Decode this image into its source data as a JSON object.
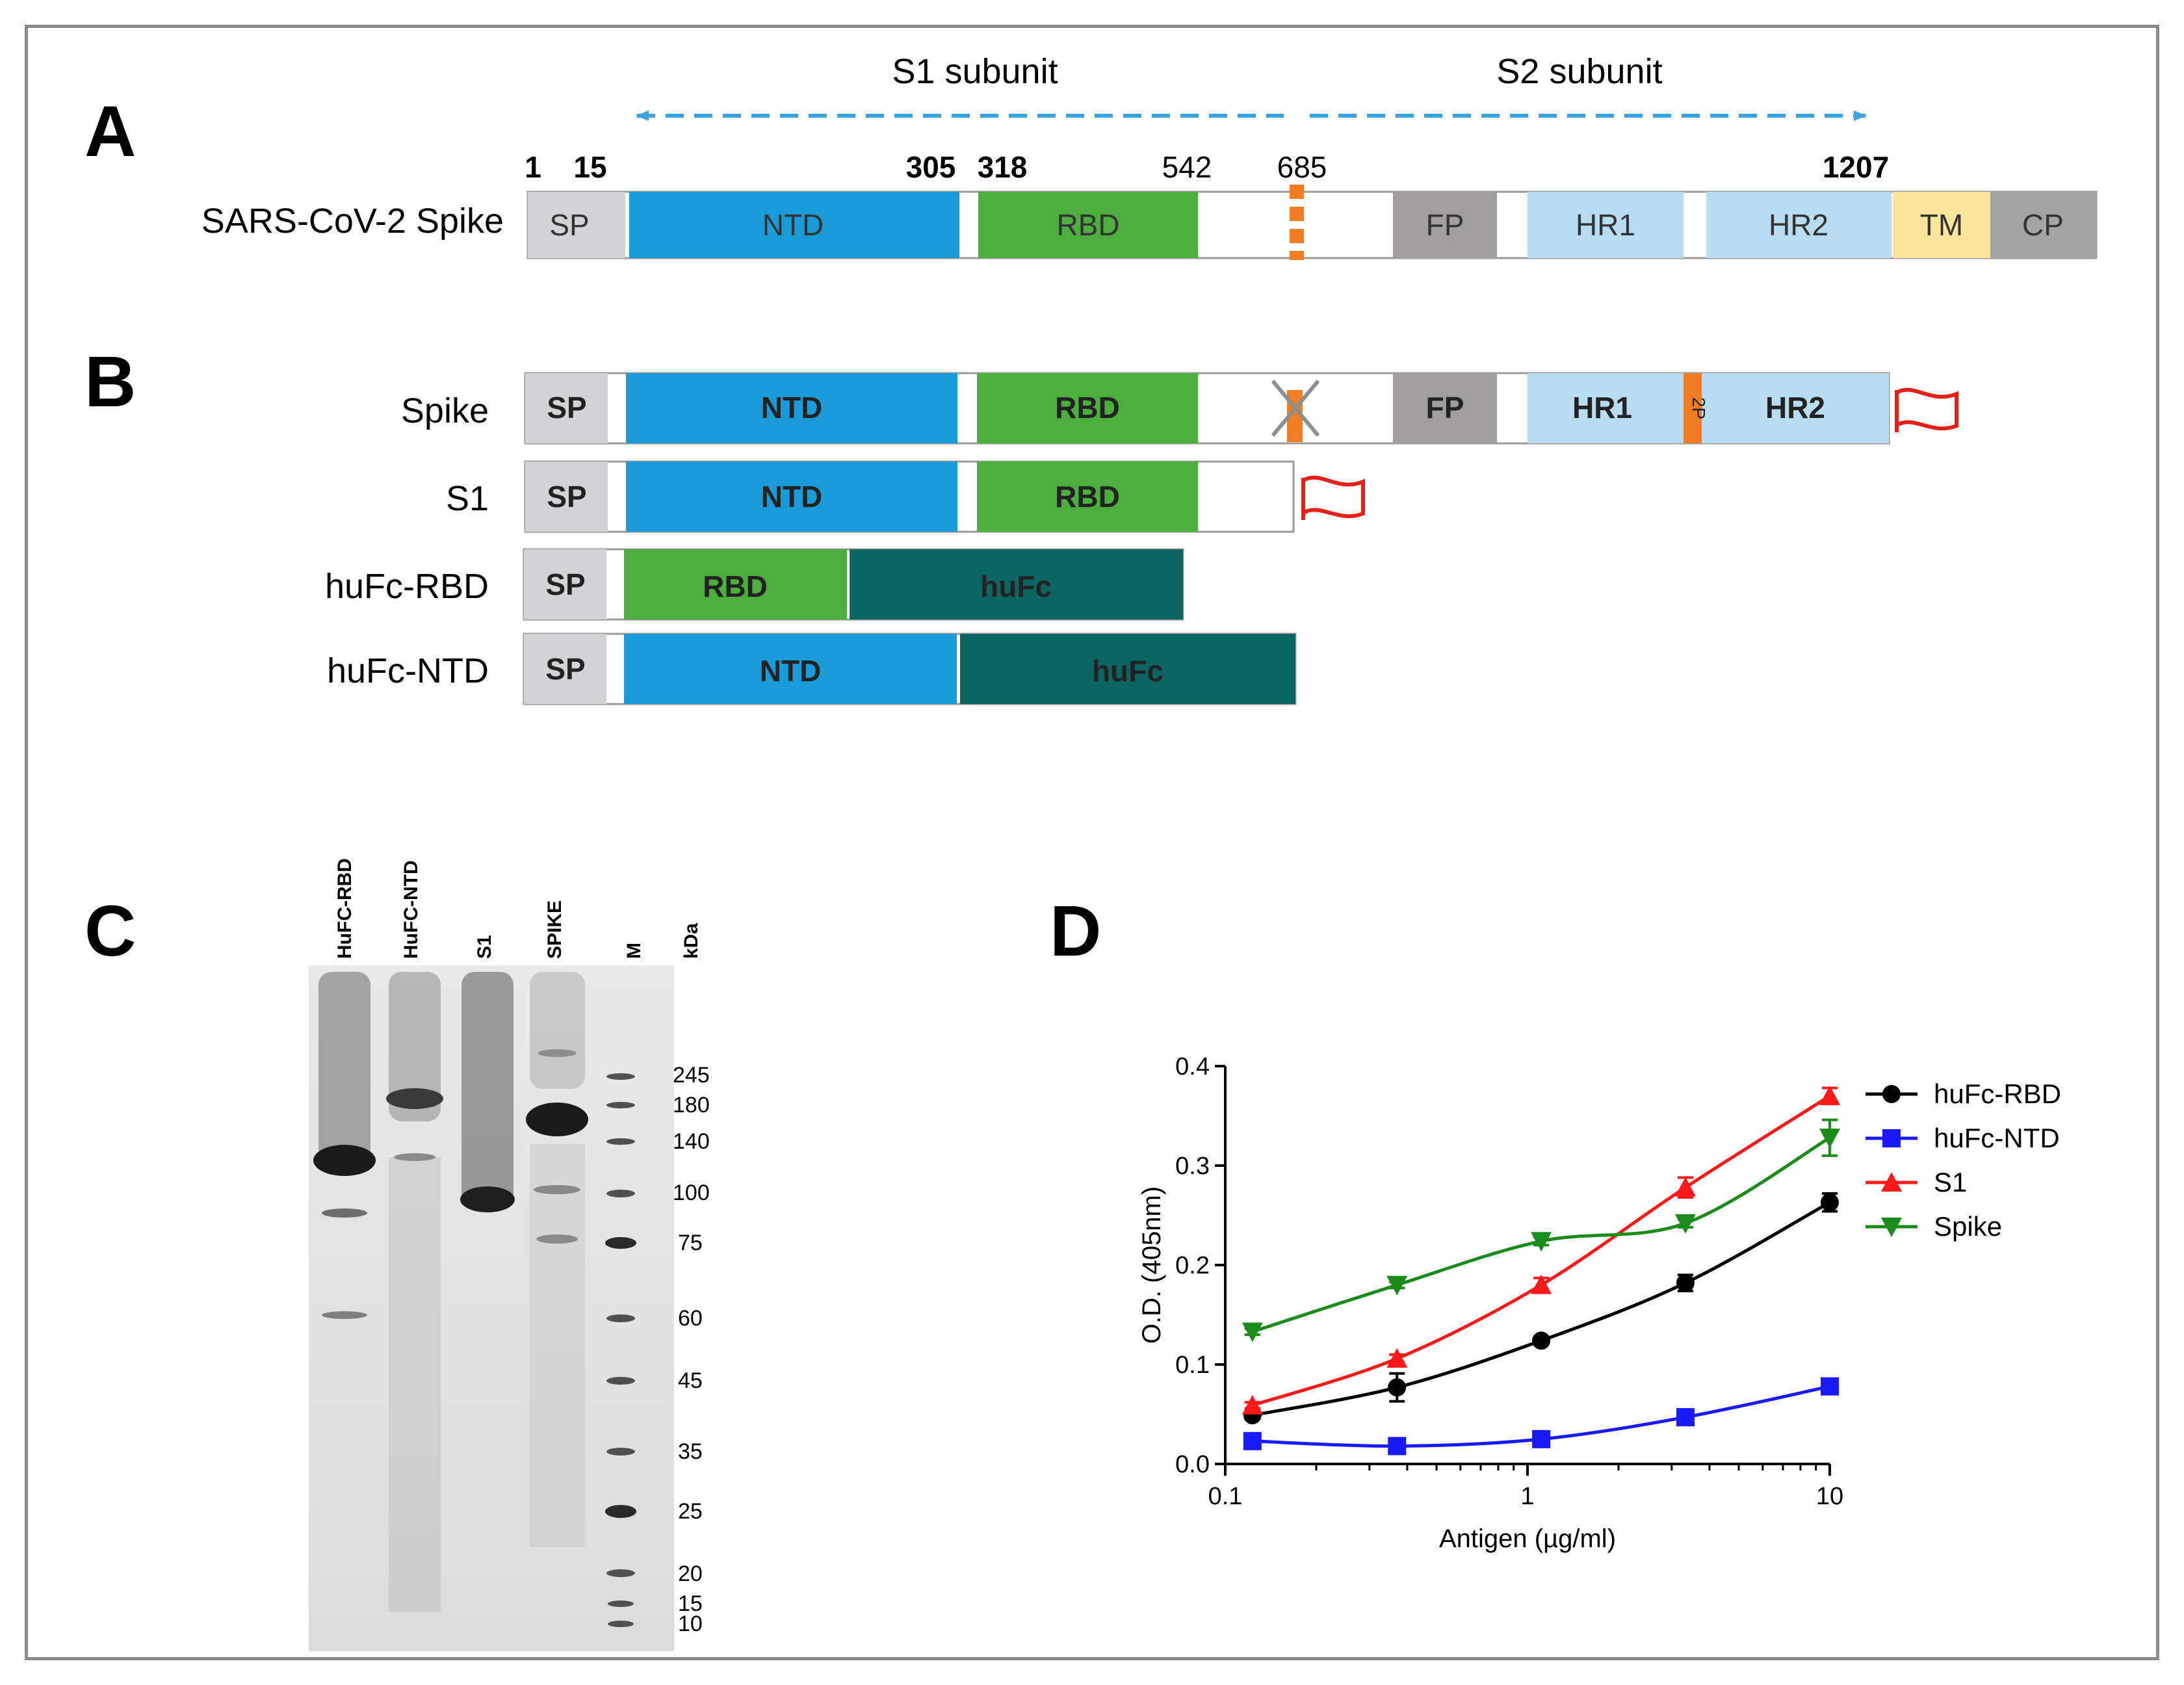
{
  "panels": {
    "a": "A",
    "b": "B",
    "c": "C",
    "d": "D"
  },
  "colors": {
    "sp": "#d3d3d5",
    "ntd": "#1a9ad7",
    "rbd": "#4cae3c",
    "fp": "#a09e9e",
    "hr": "#b8dcf2",
    "tm": "#fbe59a",
    "cp": "#a4a4a4",
    "hufc": "#0b6560",
    "cleavage": "#f07c23",
    "arrow": "#3aa3e0",
    "tag": "#e32119"
  },
  "panel_a": {
    "s1_subunit": "S1 subunit",
    "s2_subunit": "S2 subunit",
    "positions": [
      "1",
      "15",
      "305",
      "318",
      "542",
      "685",
      "1207"
    ],
    "row_label": "SARS-CoV-2 Spike",
    "segments": [
      "SP",
      "NTD",
      "RBD",
      "FP",
      "HR1",
      "HR2",
      "TM",
      "CP"
    ]
  },
  "panel_b": {
    "constructs": [
      {
        "label": "Spike",
        "segments": [
          "SP",
          "NTD",
          "RBD",
          "FP",
          "HR1",
          "2P",
          "HR2"
        ]
      },
      {
        "label": "S1",
        "segments": [
          "SP",
          "NTD",
          "RBD"
        ]
      },
      {
        "label": "huFc-RBD",
        "segments": [
          "SP",
          "RBD",
          "huFc"
        ]
      },
      {
        "label": "huFc-NTD",
        "segments": [
          "SP",
          "NTD",
          "huFc"
        ]
      }
    ]
  },
  "panel_c": {
    "lanes": [
      "HuFC-RBD",
      "HuFC-NTD",
      "S1",
      "SPIKE",
      "M"
    ],
    "unit": "kDa",
    "markers": [
      "245",
      "180",
      "140",
      "100",
      "75",
      "60",
      "45",
      "35",
      "25",
      "20",
      "15",
      "10"
    ]
  },
  "chart_data": {
    "type": "line",
    "xscale": "log",
    "xlabel": "Antigen (µg/ml)",
    "ylabel": "O.D. (405nm)",
    "xlim": [
      0.1,
      10
    ],
    "ylim": [
      0.0,
      0.4
    ],
    "xticks": [
      "0.1",
      "1",
      "10"
    ],
    "yticks": [
      "0.0",
      "0.1",
      "0.2",
      "0.3",
      "0.4"
    ],
    "x": [
      0.123,
      0.37,
      1.11,
      3.33,
      10
    ],
    "legend_position": "right",
    "series": [
      {
        "name": "huFc-RBD",
        "color": "#000000",
        "marker": "circle",
        "values": [
          0.049,
          0.077,
          0.124,
          0.182,
          0.263
        ],
        "errors": [
          0.004,
          0.014,
          0.004,
          0.008,
          0.009
        ]
      },
      {
        "name": "huFc-NTD",
        "color": "#1a1aff",
        "marker": "square",
        "values": [
          0.023,
          0.018,
          0.025,
          0.047,
          0.078
        ],
        "errors": [
          0.002,
          0.002,
          0.002,
          0.003,
          0.003
        ]
      },
      {
        "name": "S1",
        "color": "#ff1a1a",
        "marker": "triangle-up",
        "values": [
          0.059,
          0.106,
          0.18,
          0.278,
          0.37
        ],
        "errors": [
          0.003,
          0.004,
          0.007,
          0.01,
          0.008
        ]
      },
      {
        "name": "Spike",
        "color": "#1a8c1a",
        "marker": "triangle-down",
        "values": [
          0.133,
          0.18,
          0.224,
          0.242,
          0.328
        ],
        "errors": [
          0.003,
          0.003,
          0.004,
          0.004,
          0.018
        ]
      }
    ]
  }
}
